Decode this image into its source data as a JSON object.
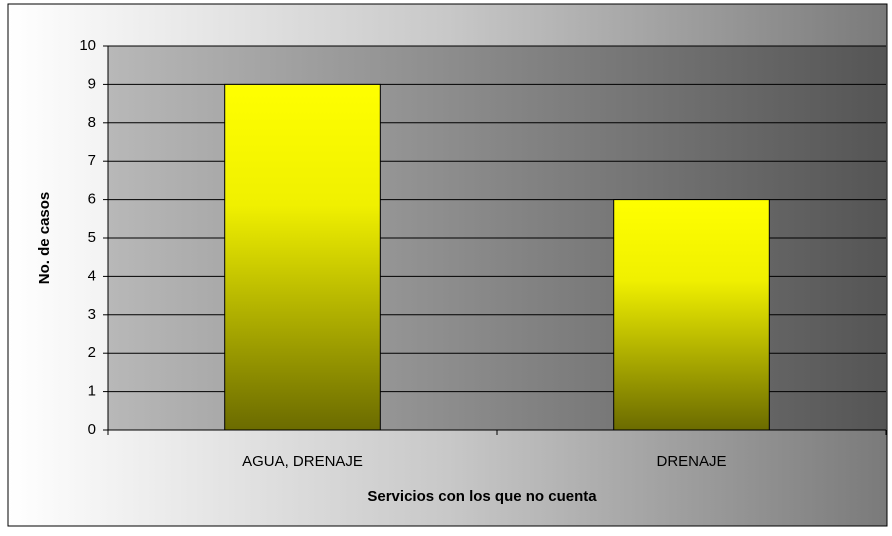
{
  "chart_data": {
    "type": "bar",
    "categories": [
      "AGUA, DRENAJE",
      "DRENAJE"
    ],
    "values": [
      9,
      6
    ],
    "color": "#ffff00",
    "xlabel": "Servicios con los que no cuenta",
    "ylabel": "No. de casos",
    "ylim": [
      0,
      10
    ],
    "yticks": [
      0,
      1,
      2,
      3,
      4,
      5,
      6,
      7,
      8,
      9,
      10
    ],
    "grid": true
  }
}
